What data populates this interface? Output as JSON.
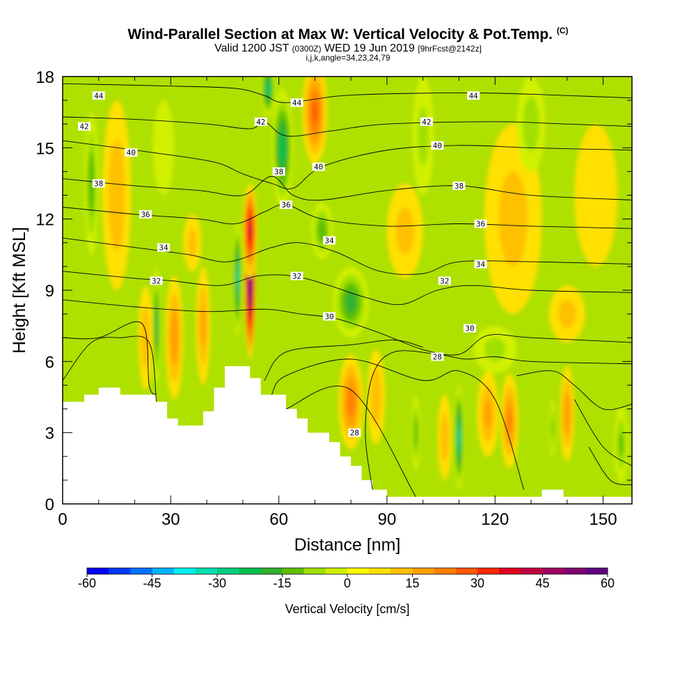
{
  "title": {
    "main": "Wind-Parallel Section at Max W: Vertical Velocity & Pot.Temp.",
    "copyright": "(C)",
    "valid_prefix": "Valid 1200 JST",
    "valid_z": "(0300Z)",
    "valid_date": "WED 19 Jun 2019",
    "forecast": "[9hrFcst@2142z]",
    "indices": "i,j,k,angle=34,23,24,79"
  },
  "chart_data": {
    "type": "heatmap",
    "xlabel": "Distance [nm]",
    "ylabel": "Height [Kft MSL]",
    "xlim": [
      0,
      158
    ],
    "ylim": [
      0,
      18
    ],
    "x_ticks": [
      "0",
      "30",
      "60",
      "90",
      "120",
      "150"
    ],
    "x_tick_values": [
      0,
      30,
      60,
      90,
      120,
      150
    ],
    "y_ticks": [
      "0",
      "3",
      "6",
      "9",
      "12",
      "15",
      "18"
    ],
    "y_tick_values": [
      0,
      3,
      6,
      9,
      12,
      15,
      18
    ],
    "background_color": "#aee000",
    "colorbar": {
      "title": "Vertical Velocity [cm/s]",
      "labels": [
        "-60",
        "-45",
        "-30",
        "-15",
        "0",
        "15",
        "30",
        "45",
        "60"
      ],
      "colors": [
        "#0000ff",
        "#0038ff",
        "#0070ff",
        "#00b4ff",
        "#00f0f0",
        "#00e0b0",
        "#00d080",
        "#00c050",
        "#30b030",
        "#60c000",
        "#a0e000",
        "#d0f000",
        "#ffff00",
        "#ffe000",
        "#ffc000",
        "#ffa000",
        "#ff8000",
        "#ff5800",
        "#ff2800",
        "#e00020",
        "#c00040",
        "#a00060",
        "#800070",
        "#600080"
      ]
    },
    "terrain_kft": [
      [
        0,
        4.3
      ],
      [
        6,
        4.3
      ],
      [
        6,
        4.6
      ],
      [
        10,
        4.6
      ],
      [
        10,
        4.9
      ],
      [
        16,
        4.9
      ],
      [
        16,
        4.6
      ],
      [
        26,
        4.6
      ],
      [
        26,
        4.3
      ],
      [
        29,
        4.3
      ],
      [
        29,
        3.6
      ],
      [
        32,
        3.6
      ],
      [
        32,
        3.3
      ],
      [
        39,
        3.3
      ],
      [
        39,
        3.9
      ],
      [
        42,
        3.9
      ],
      [
        42,
        4.9
      ],
      [
        45,
        4.9
      ],
      [
        45,
        5.8
      ],
      [
        52,
        5.8
      ],
      [
        52,
        5.3
      ],
      [
        55,
        5.3
      ],
      [
        55,
        4.6
      ],
      [
        62,
        4.6
      ],
      [
        62,
        4.0
      ],
      [
        65,
        4.0
      ],
      [
        65,
        3.6
      ],
      [
        68,
        3.6
      ],
      [
        68,
        3.0
      ],
      [
        74,
        3.0
      ],
      [
        74,
        2.6
      ],
      [
        77,
        2.6
      ],
      [
        77,
        2.0
      ],
      [
        80,
        2.0
      ],
      [
        80,
        1.6
      ],
      [
        83,
        1.6
      ],
      [
        83,
        1.0
      ],
      [
        86,
        1.0
      ],
      [
        86,
        0.6
      ],
      [
        90,
        0.6
      ],
      [
        90,
        0.3
      ],
      [
        133,
        0.3
      ],
      [
        133,
        0.6
      ],
      [
        139,
        0.6
      ],
      [
        139,
        0.3
      ],
      [
        158,
        0.3
      ]
    ],
    "velocity_features": [
      {
        "x": 52,
        "y": 9.5,
        "rx": 1.6,
        "ry": 3.4,
        "w": 65
      },
      {
        "x": 52,
        "y": 11.5,
        "rx": 2.0,
        "ry": 2.0,
        "w": 40
      },
      {
        "x": 48.5,
        "y": 9.5,
        "rx": 1.2,
        "ry": 2.4,
        "w": -35
      },
      {
        "x": 61,
        "y": 15.0,
        "rx": 3.0,
        "ry": 2.5,
        "w": -28
      },
      {
        "x": 57,
        "y": 17.5,
        "rx": 2.0,
        "ry": 1.2,
        "w": -30
      },
      {
        "x": 70,
        "y": 16.5,
        "rx": 3.5,
        "ry": 2.2,
        "w": 25
      },
      {
        "x": 26,
        "y": 7.5,
        "rx": 1.2,
        "ry": 2.5,
        "w": -25
      },
      {
        "x": 23,
        "y": 7.0,
        "rx": 2.0,
        "ry": 2.2,
        "w": 12
      },
      {
        "x": 31,
        "y": 7.0,
        "rx": 2.5,
        "ry": 2.6,
        "w": 18
      },
      {
        "x": 39,
        "y": 7.5,
        "rx": 2.0,
        "ry": 2.5,
        "w": 15
      },
      {
        "x": 8,
        "y": 13.5,
        "rx": 2.0,
        "ry": 3.0,
        "w": -18
      },
      {
        "x": 15,
        "y": 13.0,
        "rx": 4.0,
        "ry": 4.0,
        "w": 12
      },
      {
        "x": 80,
        "y": 8.5,
        "rx": 5.0,
        "ry": 1.5,
        "w": -22
      },
      {
        "x": 72,
        "y": 11.5,
        "rx": 3.0,
        "ry": 1.2,
        "w": -18
      },
      {
        "x": 110,
        "y": 2.8,
        "rx": 1.4,
        "ry": 2.2,
        "w": -35
      },
      {
        "x": 106,
        "y": 2.8,
        "rx": 2.0,
        "ry": 1.8,
        "w": 12
      },
      {
        "x": 98,
        "y": 3.0,
        "rx": 1.2,
        "ry": 1.6,
        "w": -18
      },
      {
        "x": 80,
        "y": 4.3,
        "rx": 3.5,
        "ry": 2.0,
        "w": 22
      },
      {
        "x": 87,
        "y": 4.5,
        "rx": 2.5,
        "ry": 2.0,
        "w": 12
      },
      {
        "x": 118,
        "y": 3.8,
        "rx": 3.0,
        "ry": 1.8,
        "w": 15
      },
      {
        "x": 124,
        "y": 3.5,
        "rx": 2.5,
        "ry": 2.0,
        "w": 20
      },
      {
        "x": 140,
        "y": 3.8,
        "rx": 2.0,
        "ry": 2.0,
        "w": 18
      },
      {
        "x": 136,
        "y": 3.2,
        "rx": 0.8,
        "ry": 1.2,
        "w": -15
      },
      {
        "x": 125,
        "y": 12.0,
        "rx": 8.0,
        "ry": 4.0,
        "w": 10
      },
      {
        "x": 148,
        "y": 13.0,
        "rx": 6.0,
        "ry": 3.0,
        "w": 8
      },
      {
        "x": 120,
        "y": 6.5,
        "rx": 6.0,
        "ry": 1.0,
        "w": -10
      },
      {
        "x": 95,
        "y": 11.5,
        "rx": 5.0,
        "ry": 2.0,
        "w": 10
      },
      {
        "x": 140,
        "y": 8.0,
        "rx": 5.0,
        "ry": 1.2,
        "w": 10
      },
      {
        "x": 36,
        "y": 11.0,
        "rx": 2.5,
        "ry": 1.2,
        "w": 10
      },
      {
        "x": 130,
        "y": 16.0,
        "rx": 4.0,
        "ry": 2.0,
        "w": -12
      },
      {
        "x": 100,
        "y": 15.5,
        "rx": 3.0,
        "ry": 2.5,
        "w": -10
      },
      {
        "x": 155,
        "y": 2.5,
        "rx": 2.0,
        "ry": 1.6,
        "w": -15
      },
      {
        "x": 28,
        "y": 15.0,
        "rx": 3.0,
        "ry": 2.0,
        "w": -8
      }
    ],
    "theta_contours": [
      {
        "label": "44",
        "pts": [
          [
            0,
            17.7
          ],
          [
            30,
            17.6
          ],
          [
            48,
            17.5
          ],
          [
            56,
            17.2
          ],
          [
            62,
            16.9
          ],
          [
            78,
            17.2
          ],
          [
            100,
            17.3
          ],
          [
            120,
            17.3
          ],
          [
            140,
            17.2
          ],
          [
            158,
            17.1
          ]
        ],
        "label_at": [
          [
            10,
            17.2
          ],
          [
            65,
            16.9
          ],
          [
            114,
            17.2
          ]
        ]
      },
      {
        "label": "42",
        "pts": [
          [
            0,
            16.3
          ],
          [
            20,
            16.2
          ],
          [
            40,
            16.0
          ],
          [
            52,
            15.8
          ],
          [
            56,
            16.1
          ],
          [
            62,
            15.5
          ],
          [
            74,
            15.7
          ],
          [
            90,
            16.0
          ],
          [
            120,
            16.1
          ],
          [
            140,
            16.0
          ],
          [
            158,
            15.9
          ]
        ],
        "label_at": [
          [
            6,
            15.9
          ],
          [
            55,
            16.1
          ],
          [
            101,
            16.1
          ]
        ]
      },
      {
        "label": "40",
        "pts": [
          [
            0,
            15.3
          ],
          [
            25,
            14.8
          ],
          [
            42,
            14.4
          ],
          [
            50,
            13.9
          ],
          [
            58,
            13.5
          ],
          [
            64,
            13.3
          ],
          [
            72,
            14.2
          ],
          [
            90,
            14.9
          ],
          [
            110,
            15.1
          ],
          [
            130,
            15.0
          ],
          [
            158,
            14.9
          ]
        ],
        "label_at": [
          [
            19,
            14.8
          ],
          [
            71,
            14.2
          ],
          [
            104,
            15.1
          ]
        ]
      },
      {
        "label": "38",
        "pts": [
          [
            0,
            13.7
          ],
          [
            20,
            13.4
          ],
          [
            38,
            13.2
          ],
          [
            50,
            13.0
          ],
          [
            58,
            13.8
          ],
          [
            64,
            13.0
          ],
          [
            72,
            12.8
          ],
          [
            90,
            13.2
          ],
          [
            110,
            13.4
          ],
          [
            130,
            13.0
          ],
          [
            158,
            12.8
          ]
        ],
        "label_at": [
          [
            10,
            13.5
          ],
          [
            60,
            14.0
          ],
          [
            110,
            13.4
          ]
        ]
      },
      {
        "label": "36",
        "pts": [
          [
            0,
            12.5
          ],
          [
            20,
            12.2
          ],
          [
            38,
            12.0
          ],
          [
            48,
            11.8
          ],
          [
            56,
            12.3
          ],
          [
            62,
            12.6
          ],
          [
            72,
            12.0
          ],
          [
            90,
            11.7
          ],
          [
            110,
            11.8
          ],
          [
            130,
            11.7
          ],
          [
            158,
            11.6
          ]
        ],
        "label_at": [
          [
            23,
            12.2
          ],
          [
            62,
            12.6
          ],
          [
            116,
            11.8
          ]
        ]
      },
      {
        "label": "34",
        "pts": [
          [
            0,
            11.2
          ],
          [
            20,
            10.8
          ],
          [
            35,
            10.5
          ],
          [
            46,
            10.2
          ],
          [
            58,
            10.8
          ],
          [
            66,
            11.0
          ],
          [
            76,
            10.6
          ],
          [
            88,
            9.8
          ],
          [
            100,
            9.7
          ],
          [
            110,
            10.2
          ],
          [
            130,
            10.2
          ],
          [
            158,
            10.1
          ]
        ],
        "label_at": [
          [
            28,
            10.8
          ],
          [
            74,
            11.1
          ],
          [
            116,
            10.1
          ]
        ]
      },
      {
        "label": "32",
        "pts": [
          [
            0,
            9.8
          ],
          [
            20,
            9.5
          ],
          [
            30,
            9.4
          ],
          [
            44,
            9.2
          ],
          [
            54,
            9.6
          ],
          [
            64,
            9.6
          ],
          [
            74,
            9.2
          ],
          [
            84,
            8.7
          ],
          [
            94,
            8.4
          ],
          [
            104,
            9.0
          ],
          [
            114,
            9.2
          ],
          [
            130,
            9.0
          ],
          [
            158,
            8.9
          ]
        ],
        "label_at": [
          [
            26,
            9.4
          ],
          [
            65,
            9.6
          ],
          [
            106,
            9.4
          ]
        ]
      },
      {
        "label": "30",
        "pts": [
          [
            0,
            8.6
          ],
          [
            20,
            8.3
          ],
          [
            40,
            8.1
          ],
          [
            56,
            8.2
          ],
          [
            66,
            8.0
          ],
          [
            76,
            7.8
          ],
          [
            88,
            7.2
          ],
          [
            100,
            6.5
          ],
          [
            110,
            6.3
          ],
          [
            118,
            7.1
          ],
          [
            130,
            7.0
          ],
          [
            158,
            6.8
          ]
        ],
        "label_at": [
          [
            74,
            7.9
          ],
          [
            113,
            7.4
          ]
        ]
      },
      {
        "label": "28",
        "pts": [
          [
            86,
            0.6
          ],
          [
            84,
            3.0
          ],
          [
            86,
            5.4
          ],
          [
            92,
            6.4
          ],
          [
            104,
            6.3
          ],
          [
            112,
            6.1
          ],
          [
            120,
            6.2
          ],
          [
            130,
            6.0
          ],
          [
            158,
            5.9
          ]
        ],
        "label_at": [
          [
            104,
            6.2
          ],
          [
            81,
            3.0
          ]
        ]
      },
      {
        "label": "",
        "pts": [
          [
            0,
            7.0
          ],
          [
            10,
            7.0
          ],
          [
            22,
            7.6
          ],
          [
            24,
            5.0
          ],
          [
            26,
            4.6
          ]
        ],
        "label_at": []
      },
      {
        "label": "",
        "pts": [
          [
            0,
            5.2
          ],
          [
            8,
            6.8
          ],
          [
            16,
            7.0
          ],
          [
            24,
            6.8
          ],
          [
            26,
            4.3
          ]
        ],
        "label_at": []
      },
      {
        "label": "",
        "pts": [
          [
            56,
            5.2
          ],
          [
            62,
            6.4
          ],
          [
            80,
            6.7
          ],
          [
            92,
            6.9
          ],
          [
            100,
            6.6
          ]
        ],
        "label_at": []
      },
      {
        "label": "",
        "pts": [
          [
            58,
            4.6
          ],
          [
            62,
            5.4
          ],
          [
            80,
            6.1
          ],
          [
            100,
            5.2
          ],
          [
            110,
            5.6
          ],
          [
            120,
            4.4
          ],
          [
            128,
            0.6
          ]
        ],
        "label_at": []
      },
      {
        "label": "",
        "pts": [
          [
            62,
            4.0
          ],
          [
            80,
            4.8
          ],
          [
            98,
            0.3
          ]
        ],
        "label_at": []
      },
      {
        "label": "",
        "pts": [
          [
            126,
            5.4
          ],
          [
            136,
            5.6
          ],
          [
            142,
            5.0
          ],
          [
            150,
            4.0
          ],
          [
            158,
            4.2
          ]
        ],
        "label_at": []
      },
      {
        "label": "",
        "pts": [
          [
            142,
            4.4
          ],
          [
            150,
            2.4
          ],
          [
            158,
            1.6
          ]
        ],
        "label_at": []
      },
      {
        "label": "",
        "pts": [
          [
            146,
            2.4
          ],
          [
            152,
            1.0
          ],
          [
            158,
            0.8
          ]
        ],
        "label_at": []
      }
    ]
  }
}
